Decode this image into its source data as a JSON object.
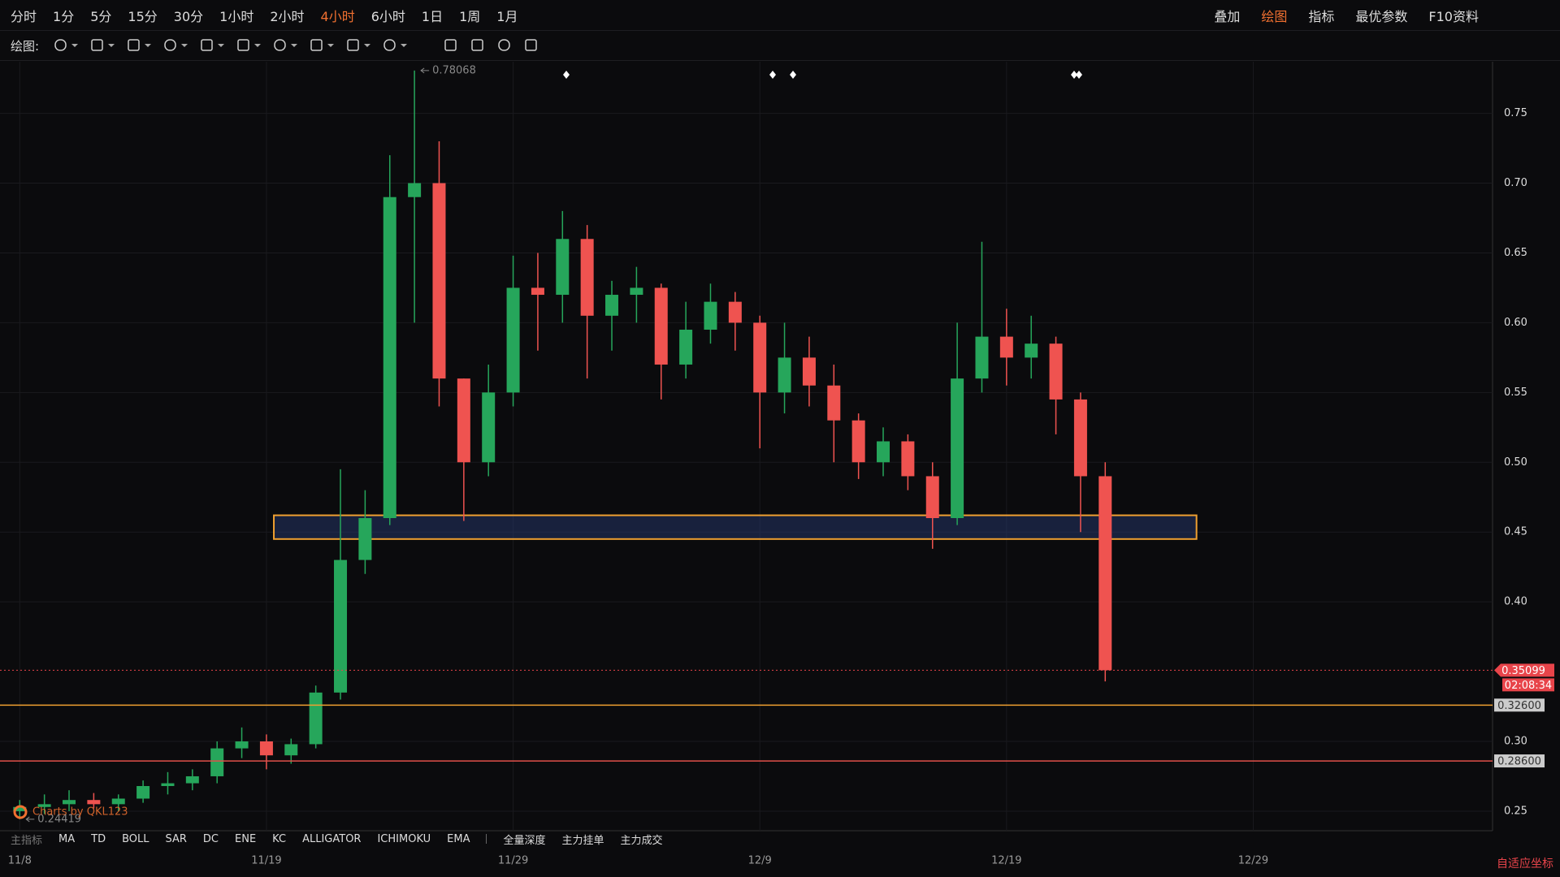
{
  "toolbar": {
    "intervals": [
      "分时",
      "1分",
      "5分",
      "15分",
      "30分",
      "1小时",
      "2小时",
      "4小时",
      "6小时",
      "1日",
      "1周",
      "1月"
    ],
    "active_index": 7,
    "actions": [
      "叠加",
      "绘图",
      "指标",
      "最优参数",
      "F10资料"
    ],
    "active_action": 1
  },
  "draw_bar": {
    "label": "绘图:"
  },
  "indicator_bar": {
    "title": "主指标",
    "indicators": [
      "MA",
      "TD",
      "BOLL",
      "SAR",
      "DC",
      "ENE",
      "KC",
      "ALLIGATOR",
      "ICHIMOKU",
      "EMA"
    ],
    "tools": [
      "全量深度",
      "主力挂单",
      "主力成交"
    ]
  },
  "axis_mode": "自适应坐标",
  "chart_data": {
    "type": "candlestick",
    "watermark": "Charts by QKL123",
    "x": [
      -10,
      -9,
      -8,
      -7,
      -6,
      -5,
      -4,
      -3,
      -2,
      -1,
      0,
      1,
      2,
      3,
      4,
      5,
      6,
      7,
      8,
      9,
      10,
      11,
      12,
      13,
      14,
      15,
      16,
      17,
      18,
      19,
      20,
      21,
      22,
      23,
      24,
      25,
      26,
      27,
      28,
      29,
      30,
      31,
      32,
      33,
      34
    ],
    "open": [
      0.25,
      0.253,
      0.255,
      0.258,
      0.255,
      0.259,
      0.268,
      0.27,
      0.275,
      0.295,
      0.3,
      0.29,
      0.298,
      0.335,
      0.43,
      0.46,
      0.69,
      0.7,
      0.56,
      0.5,
      0.55,
      0.625,
      0.62,
      0.66,
      0.605,
      0.62,
      0.625,
      0.57,
      0.595,
      0.615,
      0.6,
      0.55,
      0.575,
      0.555,
      0.53,
      0.5,
      0.515,
      0.49,
      0.46,
      0.56,
      0.59,
      0.575,
      0.585,
      0.545,
      0.49
    ],
    "high": [
      0.258,
      0.262,
      0.265,
      0.263,
      0.262,
      0.272,
      0.278,
      0.28,
      0.3,
      0.31,
      0.305,
      0.302,
      0.34,
      0.495,
      0.48,
      0.72,
      0.78068,
      0.73,
      0.56,
      0.57,
      0.648,
      0.65,
      0.68,
      0.67,
      0.63,
      0.64,
      0.628,
      0.615,
      0.628,
      0.622,
      0.605,
      0.6,
      0.59,
      0.57,
      0.535,
      0.525,
      0.52,
      0.5,
      0.6,
      0.658,
      0.61,
      0.605,
      0.59,
      0.55,
      0.5
    ],
    "low": [
      0.24419,
      0.248,
      0.25,
      0.252,
      0.25,
      0.256,
      0.262,
      0.265,
      0.27,
      0.288,
      0.28,
      0.284,
      0.295,
      0.33,
      0.42,
      0.455,
      0.6,
      0.54,
      0.458,
      0.49,
      0.54,
      0.58,
      0.6,
      0.56,
      0.58,
      0.6,
      0.545,
      0.56,
      0.585,
      0.58,
      0.51,
      0.535,
      0.54,
      0.5,
      0.488,
      0.49,
      0.48,
      0.438,
      0.455,
      0.55,
      0.555,
      0.56,
      0.52,
      0.45,
      0.343
    ],
    "close": [
      0.253,
      0.255,
      0.258,
      0.255,
      0.259,
      0.268,
      0.27,
      0.275,
      0.295,
      0.3,
      0.29,
      0.298,
      0.335,
      0.43,
      0.46,
      0.69,
      0.7,
      0.56,
      0.5,
      0.55,
      0.625,
      0.62,
      0.66,
      0.605,
      0.62,
      0.625,
      0.57,
      0.595,
      0.615,
      0.6,
      0.55,
      0.575,
      0.555,
      0.53,
      0.5,
      0.515,
      0.49,
      0.46,
      0.56,
      0.59,
      0.575,
      0.585,
      0.545,
      0.49,
      0.35099
    ],
    "up_color": "#26a65b",
    "down_color": "#ef5350",
    "xlim": [
      -10.8,
      49.7
    ],
    "xticks": [
      {
        "value": -10,
        "label": "11/8"
      },
      {
        "value": 0,
        "label": "11/19"
      },
      {
        "value": 10,
        "label": "11/29"
      },
      {
        "value": 20,
        "label": "12/9"
      },
      {
        "value": 30,
        "label": "12/19"
      },
      {
        "value": 40,
        "label": "12/29"
      }
    ],
    "ylim": [
      0.236,
      0.787
    ],
    "yticks": [
      0.25,
      {
        "value": 0.3,
        "label": "0.30"
      },
      {
        "value": 0.4,
        "label": "0.40"
      },
      0.45,
      {
        "value": 0.5,
        "label": "0.50"
      },
      0.55,
      {
        "value": 0.6,
        "label": "0.60"
      },
      0.65,
      {
        "value": 0.7,
        "label": "0.70"
      },
      0.75
    ],
    "grid": true,
    "hlines": [
      {
        "value": 0.326,
        "label": "0.32600",
        "color": "#f0a030"
      },
      {
        "value": 0.286,
        "label": "0.28600",
        "color": "#e0504a"
      }
    ],
    "current": {
      "value": 0.35099,
      "label": "0.35099",
      "countdown": "02:08:34",
      "color": "#e8444a"
    },
    "zone": {
      "x": [
        0.3,
        37.7
      ],
      "y": [
        0.445,
        0.462
      ],
      "color": "#f0a030"
    },
    "max_marker": {
      "x": 6,
      "value": 0.78068,
      "label": "0.78068"
    },
    "min_marker": {
      "x": -10,
      "value": 0.24419,
      "label": "0.24419"
    }
  }
}
